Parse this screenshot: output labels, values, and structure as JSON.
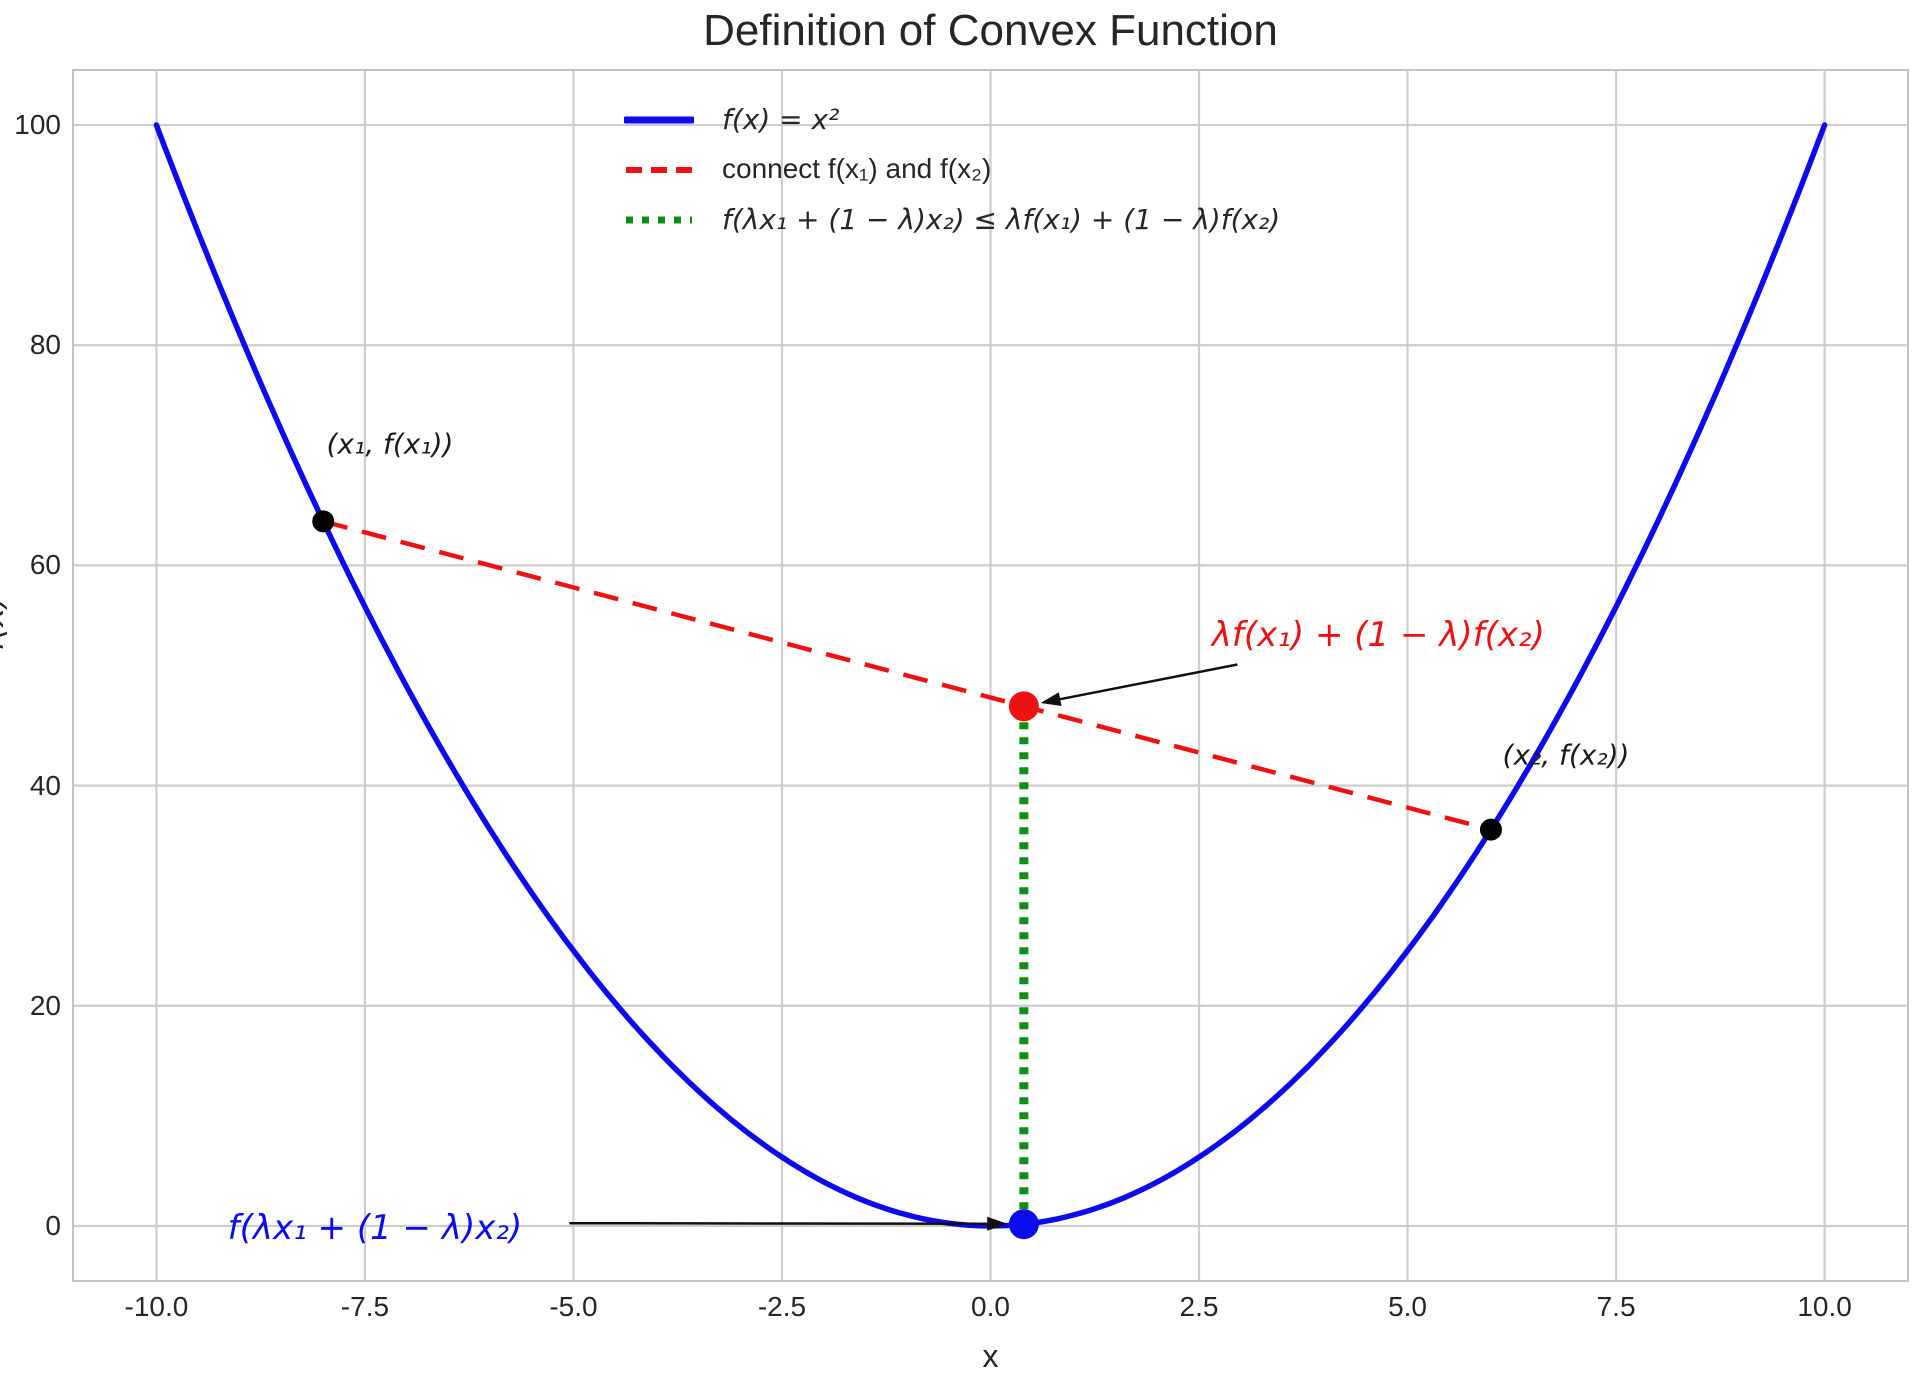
{
  "figure": {
    "background": "#ffffff",
    "text_color": "#262626",
    "grid_color": "#cdcdcd",
    "spine_color": "#c4c4c4",
    "arrow_color": "#111111"
  },
  "chart_data": {
    "type": "line",
    "title": "Definition of Convex Function",
    "xlabel": "x",
    "ylabel": "f(x)",
    "xlim": [
      -11,
      11
    ],
    "ylim": [
      -5,
      105
    ],
    "grid": true,
    "x_tick_values": [
      -10,
      -7.5,
      -5,
      -2.5,
      0,
      2.5,
      5,
      7.5,
      10
    ],
    "x_tick_labels": [
      "-10.0",
      "-7.5",
      "-5.0",
      "-2.5",
      "0.0",
      "2.5",
      "5.0",
      "7.5",
      "10.0"
    ],
    "y_tick_values": [
      0,
      20,
      40,
      60,
      80,
      100
    ],
    "y_tick_labels": [
      "0",
      "20",
      "40",
      "60",
      "80",
      "100"
    ],
    "legend": {
      "position": "upper center",
      "frame": false,
      "items": [
        {
          "label": "f(x) = x²",
          "color": "#0b0bee",
          "line_style": "solid"
        },
        {
          "label": "connect f(x₁) and f(x₂)",
          "color": "#ee1111",
          "line_style": "dashed"
        },
        {
          "label": "f(λx₁ + (1 − λ)x₂) ≤ λf(x₁) + (1 − λ)f(x₂)",
          "color": "#0f8f0f",
          "line_style": "dotted"
        }
      ]
    },
    "function_curve": {
      "name": "f(x) = x²",
      "expr": "x^2",
      "x_range": [
        -10,
        10
      ],
      "color": "#0b0bee",
      "sample_x": [
        -10,
        -9,
        -8,
        -7,
        -6,
        -5,
        -4,
        -3,
        -2,
        -1,
        0,
        1,
        2,
        3,
        4,
        5,
        6,
        7,
        8,
        9,
        10
      ],
      "sample_y": [
        100,
        81,
        64,
        49,
        36,
        25,
        16,
        9,
        4,
        1,
        0,
        1,
        4,
        9,
        16,
        25,
        36,
        49,
        64,
        81,
        100
      ]
    },
    "lambda": 0.4,
    "x1": -8,
    "x2": 6,
    "segments": [
      {
        "name": "chord-line",
        "from": [
          -8,
          64
        ],
        "to": [
          6,
          36
        ],
        "color": "#ee1111",
        "style": "dashed"
      },
      {
        "name": "lambda-gap-line",
        "from": [
          0.4,
          0.16
        ],
        "to": [
          0.4,
          47.2
        ],
        "color": "#0f8f0f",
        "style": "dotted"
      }
    ],
    "key_points": [
      {
        "name": "point-x1",
        "x": -8,
        "y": 64,
        "color": "#000000",
        "radius": 11
      },
      {
        "name": "point-x2",
        "x": 6,
        "y": 36,
        "color": "#000000",
        "radius": 11
      },
      {
        "name": "point-on-chord",
        "x": 0.4,
        "y": 47.2,
        "color": "#ee1111",
        "radius": 15
      },
      {
        "name": "point-on-curve",
        "x": 0.4,
        "y": 0.16,
        "color": "#0b0bee",
        "radius": 15
      }
    ],
    "annotations": [
      {
        "name": "x1-point-label",
        "text": "(x₁, f(x₁))",
        "color": "#1a1a1a",
        "at": [
          -7.2,
          71
        ]
      },
      {
        "name": "x2-point-label",
        "text": "(x₂, f(x₂))",
        "color": "#1a1a1a",
        "at": [
          6.9,
          42.8
        ]
      },
      {
        "name": "chord-value-label",
        "text": "λf(x₁) + (1 − λ)f(x₂)",
        "color": "#ee1111",
        "at": [
          4.65,
          53.7
        ],
        "arrow": {
          "from": [
            2.96,
            51.0
          ],
          "to": [
            0.6,
            47.5
          ]
        }
      },
      {
        "name": "curve-value-label",
        "text": "f(λx₁ + (1 − λ)x₂)",
        "color": "#0b0bee",
        "at": [
          -7.38,
          -0.2
        ],
        "arrow": {
          "from": [
            -5.05,
            0.25
          ],
          "to": [
            0.2,
            0.2
          ]
        }
      }
    ]
  }
}
